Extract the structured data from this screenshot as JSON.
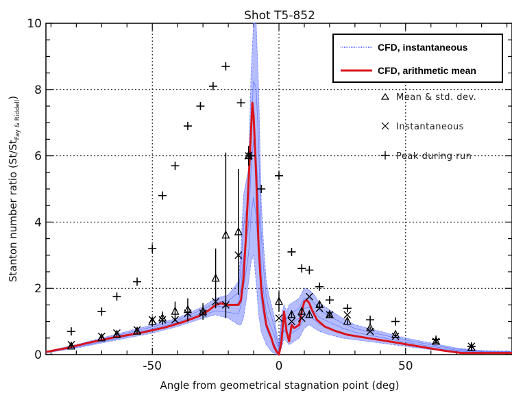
{
  "chart_data": {
    "type": "line",
    "title": "Shot T5-852",
    "xlabel": "Angle from geometrical stagnation point (deg)",
    "ylabel": "Stanton number ratio (St/St",
    "ylabel_sub": "Fay & Riddell",
    "ylabel_close": ")",
    "xlim": [
      -92,
      92
    ],
    "ylim": [
      0,
      10
    ],
    "x_ticks": [
      -50,
      0,
      50
    ],
    "y_ticks": [
      0,
      2,
      4,
      6,
      8,
      10
    ],
    "grid": true,
    "legend_position": "top-right",
    "colors": {
      "instantaneous": "#5b6cff",
      "mean": "#d9141c",
      "points": "#000000"
    },
    "legend": {
      "instantaneous": "CFD, instantaneous",
      "mean": "CFD, arithmetic mean",
      "triangle": "Mean & std. dev.",
      "cross": "Instantaneous",
      "plus": "Peak during run"
    },
    "series": [
      {
        "name": "CFD, arithmetic mean",
        "x": [
          -92,
          -85,
          -75,
          -65,
          -55,
          -45,
          -38,
          -32,
          -28,
          -25,
          -23,
          -20,
          -16,
          -15,
          -14,
          -13,
          -12,
          -11,
          -10.5,
          -10,
          -9,
          -8,
          -7,
          -6,
          -5,
          -4,
          -3,
          -2,
          -1,
          0,
          1,
          2,
          3,
          4,
          5,
          6,
          8,
          9,
          10,
          11,
          12,
          13,
          15,
          18,
          22,
          27,
          35,
          45,
          55,
          65,
          72,
          80,
          92
        ],
        "y": [
          0.08,
          0.18,
          0.36,
          0.52,
          0.65,
          0.82,
          0.98,
          1.15,
          1.32,
          1.5,
          1.55,
          1.5,
          1.5,
          1.65,
          2.3,
          3.6,
          5.2,
          6.8,
          7.6,
          7.2,
          5.4,
          3.2,
          2.0,
          1.4,
          0.9,
          0.7,
          0.5,
          0.25,
          0.1,
          0.0,
          0.4,
          1.3,
          0.7,
          0.4,
          0.9,
          0.8,
          0.9,
          1.3,
          1.6,
          1.65,
          1.55,
          1.35,
          1.05,
          0.85,
          0.72,
          0.6,
          0.5,
          0.38,
          0.25,
          0.12,
          0.05,
          0.05,
          0.05
        ]
      },
      {
        "name": "CFD, instantaneous",
        "x": [
          -92,
          -80,
          -70,
          -60,
          -50,
          -40,
          -30,
          -25,
          -20,
          -16,
          -15,
          -14,
          -13,
          -12,
          -11,
          -10,
          -9,
          -8,
          -7,
          -6,
          -5,
          -4,
          -3,
          -2,
          -1,
          0,
          1,
          2,
          3,
          4,
          6,
          8,
          10,
          12,
          14,
          16,
          20,
          25,
          30,
          40,
          50,
          60,
          70,
          80,
          92
        ],
        "y_low": [
          0.05,
          0.2,
          0.35,
          0.5,
          0.65,
          0.85,
          1.1,
          1.2,
          1.1,
          0.9,
          0.9,
          1.1,
          1.6,
          2.2,
          2.8,
          3.0,
          2.2,
          1.2,
          0.7,
          0.5,
          0.3,
          0.2,
          0.1,
          0.05,
          0.0,
          0.0,
          0.2,
          0.5,
          0.4,
          0.3,
          0.4,
          0.5,
          0.8,
          0.9,
          0.8,
          0.7,
          0.6,
          0.5,
          0.45,
          0.35,
          0.25,
          0.15,
          0.08,
          0.05,
          0.05
        ],
        "y_high": [
          0.1,
          0.3,
          0.5,
          0.7,
          0.9,
          1.1,
          1.45,
          1.7,
          1.8,
          2.2,
          3.2,
          4.8,
          5.2,
          5.6,
          8.5,
          10,
          10,
          8.0,
          4.6,
          3.2,
          2.2,
          1.8,
          1.5,
          1.2,
          0.7,
          0.3,
          1.2,
          1.5,
          1.3,
          1.5,
          1.6,
          1.7,
          2.0,
          1.95,
          1.8,
          1.55,
          1.35,
          1.1,
          0.9,
          0.7,
          0.5,
          0.35,
          0.2,
          0.12,
          0.1
        ]
      },
      {
        "name": "Mean & std. dev.",
        "x": [
          -82,
          -70,
          -64,
          -56,
          -50,
          -46,
          -41,
          -36,
          -30,
          -25,
          -21,
          -16,
          -12,
          0,
          5,
          9,
          12,
          16,
          20,
          27,
          36,
          46,
          62,
          76
        ],
        "y": [
          0.25,
          0.5,
          0.6,
          0.7,
          1.0,
          1.1,
          1.3,
          1.35,
          1.3,
          2.3,
          3.6,
          3.7,
          6.0,
          1.6,
          1.2,
          1.3,
          1.2,
          1.5,
          1.2,
          1.0,
          0.8,
          0.6,
          0.4,
          0.2
        ],
        "err": [
          0.05,
          0.05,
          0.05,
          0.08,
          0.15,
          0.2,
          0.3,
          0.35,
          0.25,
          0.9,
          2.5,
          1.9,
          0.3,
          0.3,
          0.1,
          0.1,
          0.1,
          0.1,
          0.1,
          0.1,
          0.05,
          0.05,
          0.05,
          0.05
        ]
      },
      {
        "name": "Instantaneous",
        "x": [
          -82,
          -70,
          -64,
          -56,
          -50,
          -46,
          -41,
          -36,
          -30,
          -25,
          -21,
          -16,
          -12,
          0,
          5,
          9,
          12,
          16,
          20,
          27,
          36,
          46,
          62,
          76
        ],
        "y": [
          0.3,
          0.55,
          0.65,
          0.75,
          1.05,
          1.05,
          1.05,
          1.25,
          1.25,
          1.6,
          1.5,
          3.0,
          6.0,
          1.1,
          1.0,
          1.1,
          1.75,
          1.4,
          1.2,
          1.2,
          0.7,
          0.55,
          0.4,
          0.25
        ]
      },
      {
        "name": "Peak during run",
        "x": [
          -82,
          -70,
          -64,
          -56,
          -50,
          -46,
          -41,
          -36,
          -31,
          -26,
          -21,
          -15,
          -11,
          -7,
          0,
          5,
          9,
          12,
          16,
          20,
          27,
          36,
          46,
          62,
          76
        ],
        "y": [
          0.7,
          1.3,
          1.75,
          2.2,
          3.2,
          4.8,
          5.7,
          6.9,
          7.5,
          8.1,
          8.7,
          7.6,
          6.0,
          5.0,
          5.4,
          3.1,
          2.6,
          2.55,
          2.05,
          1.65,
          1.4,
          1.05,
          1.0,
          0.45,
          0.25
        ]
      }
    ]
  }
}
